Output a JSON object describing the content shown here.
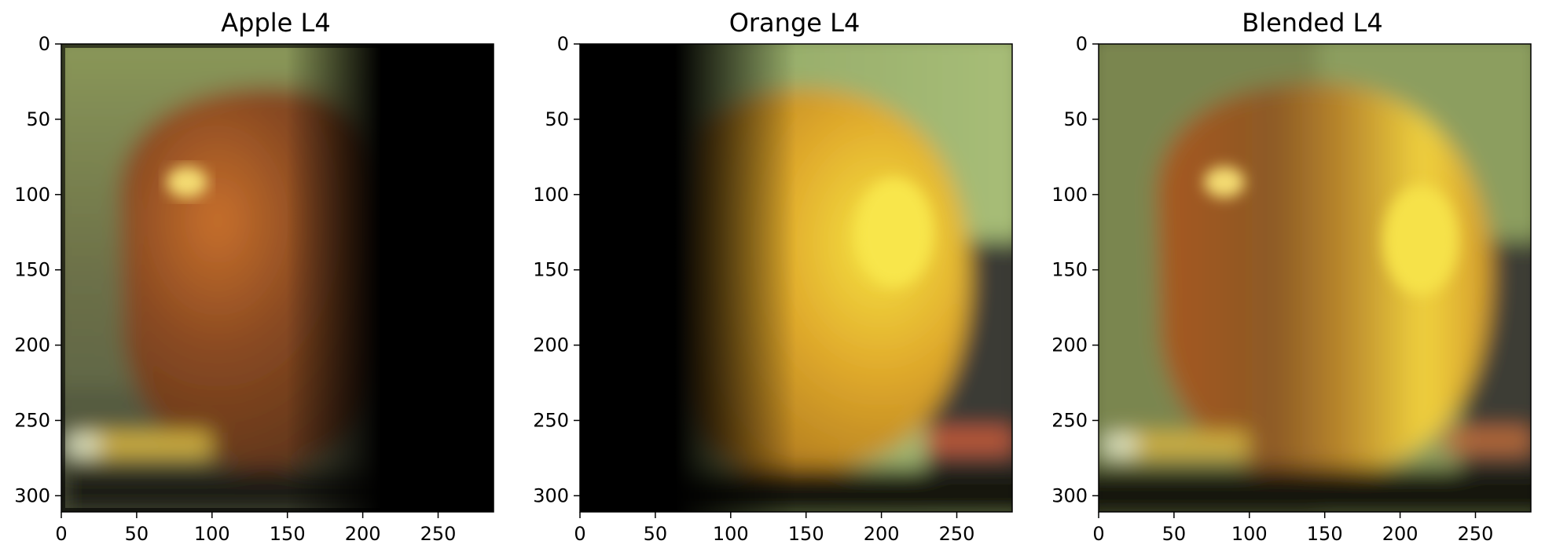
{
  "panels": [
    {
      "title": "Apple L4",
      "visible_side": "left",
      "xticks": [
        "0",
        "50",
        "100",
        "150",
        "200",
        "250"
      ],
      "yticks": [
        "0",
        "50",
        "100",
        "150",
        "200",
        "250",
        "300"
      ],
      "colors": {
        "background_top": "#8a9a58",
        "background_bottom": "#4a4a3a",
        "fruit_core": "#c46a2a",
        "fruit_edge": "#6a3a1a",
        "highlight": "#f0d070",
        "black": "#000000"
      }
    },
    {
      "title": "Orange L4",
      "visible_side": "right",
      "xticks": [
        "0",
        "50",
        "100",
        "150",
        "200",
        "250"
      ],
      "yticks": [
        "0",
        "50",
        "100",
        "150",
        "200",
        "250",
        "300"
      ],
      "colors": {
        "background_top": "#9ab070",
        "background_bottom": "#3a3a32",
        "fruit_core": "#f2dc40",
        "fruit_edge": "#c08a1e",
        "highlight": "#f6e64a",
        "black": "#000000"
      }
    },
    {
      "title": "Blended L4",
      "visible_side": "both",
      "xticks": [
        "0",
        "50",
        "100",
        "150",
        "200",
        "250"
      ],
      "yticks": [
        "0",
        "50",
        "100",
        "150",
        "200",
        "250",
        "300"
      ],
      "colors": {
        "background_top": "#94aa6a",
        "background_bottom": "#3c3c34",
        "fruit_core": "#d89038",
        "fruit_edge": "#8a5a20",
        "highlight": "#f4e048",
        "black": "#000000"
      }
    }
  ]
}
